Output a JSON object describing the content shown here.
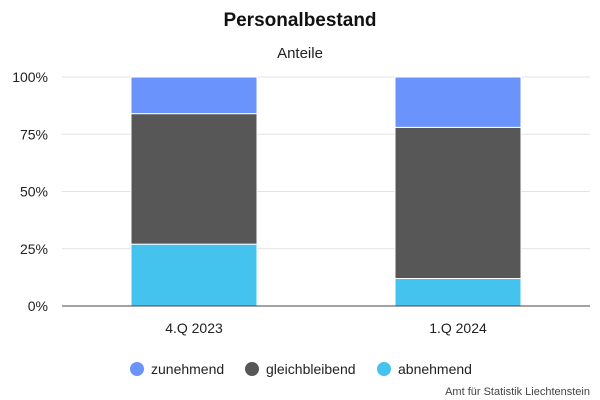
{
  "chart_data": {
    "type": "bar",
    "stacked": true,
    "normalized": true,
    "title": "Personalbestand",
    "subtitle": "Anteile",
    "categories": [
      "4.Q 2023",
      "1.Q 2024"
    ],
    "series": [
      {
        "name": "abnehmend",
        "values": [
          27,
          12
        ],
        "color": "#44c3ee"
      },
      {
        "name": "gleichbleibend",
        "values": [
          57,
          66
        ],
        "color": "#575757"
      },
      {
        "name": "zunehmend",
        "values": [
          16,
          22
        ],
        "color": "#6a94fb"
      }
    ],
    "legend_order": [
      "zunehmend",
      "gleichbleibend",
      "abnehmend"
    ],
    "y_ticks": [
      "0%",
      "25%",
      "50%",
      "75%",
      "100%"
    ],
    "ylim": [
      0,
      100
    ],
    "grid": true,
    "legend_position": "bottom",
    "credit": "Amt für Statistik Liechtenstein"
  }
}
